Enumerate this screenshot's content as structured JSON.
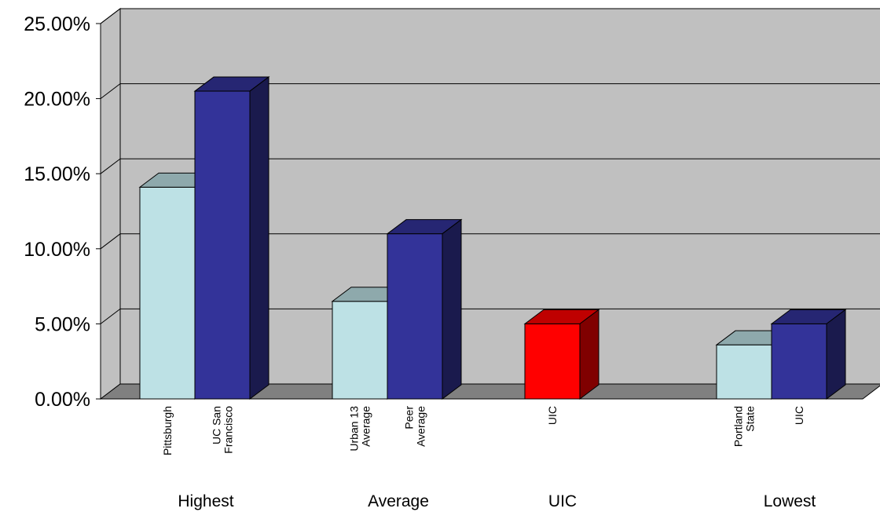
{
  "chart_data": {
    "type": "bar",
    "ylim": [
      0,
      25
    ],
    "yticks": [
      {
        "value": 0,
        "label": "0.00%"
      },
      {
        "value": 5,
        "label": "5.00%"
      },
      {
        "value": 10,
        "label": "10.00%"
      },
      {
        "value": 15,
        "label": "15.00%"
      },
      {
        "value": 20,
        "label": "20.00%"
      },
      {
        "value": 25,
        "label": "25.00%"
      }
    ],
    "grid": true,
    "groups": [
      {
        "label": "Highest",
        "bars": [
          {
            "label": [
              "Pittsburgh"
            ],
            "value": 14.1,
            "color": "#BDE1E5"
          },
          {
            "label": [
              "UC San",
              "Francisco"
            ],
            "value": 20.5,
            "color": "#333399"
          }
        ]
      },
      {
        "label": "Average",
        "bars": [
          {
            "label": [
              "Urban 13",
              "Average"
            ],
            "value": 6.5,
            "color": "#BDE1E5"
          },
          {
            "label": [
              "Peer",
              "Average"
            ],
            "value": 11.0,
            "color": "#333399"
          }
        ]
      },
      {
        "label": "UIC",
        "bars": [
          {
            "label": [
              "UIC"
            ],
            "value": 5.0,
            "color": "#FF0000"
          }
        ]
      },
      {
        "label": "Lowest",
        "bars": [
          {
            "label": [
              "Portland",
              "State"
            ],
            "value": 3.6,
            "color": "#BDE1E5"
          },
          {
            "label": [
              "UIC"
            ],
            "value": 5.0,
            "color": "#333399"
          }
        ]
      }
    ]
  }
}
